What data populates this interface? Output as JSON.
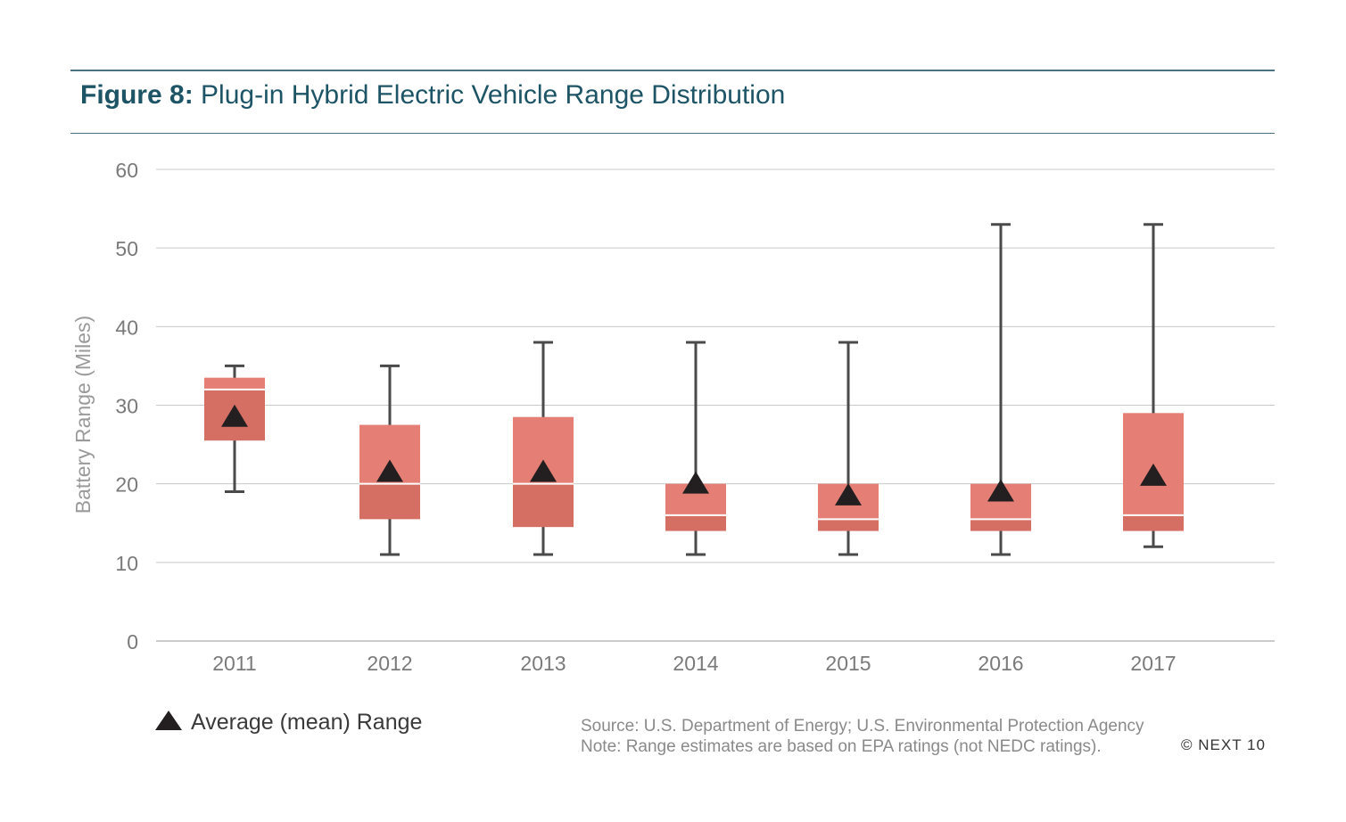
{
  "figure": {
    "label": "Figure 8:",
    "title": "Plug-in Hybrid Electric Vehicle Range Distribution"
  },
  "legend": {
    "label": "Average (mean) Range",
    "icon": "triangle-marker-icon"
  },
  "source": "Source: U.S. Department of Energy; U.S. Environmental Protection Agency",
  "note": "Note: Range estimates are based on EPA ratings (not NEDC ratings).",
  "copyright": "© NEXT 10",
  "colors": {
    "accent": "#1d5466",
    "rule": "#4b7282",
    "box_upper": "#e57f75",
    "box_lower": "#d56f64",
    "whisker": "#4a4a4a",
    "mean_marker": "#231f20",
    "grid": "#c8c8c8",
    "tick_text": "#7a7a7a"
  },
  "chart_data": {
    "type": "boxplot",
    "ylabel": "Battery Range (Miles)",
    "xlabel": "",
    "ylim": [
      0,
      60
    ],
    "yticks": [
      0,
      10,
      20,
      30,
      40,
      50,
      60
    ],
    "grid": true,
    "legend_position": "bottom-left",
    "categories": [
      "2011",
      "2012",
      "2013",
      "2014",
      "2015",
      "2016",
      "2017"
    ],
    "boxes": [
      {
        "year": "2011",
        "min": 19,
        "q1": 25.5,
        "median": 32,
        "q3": 33.5,
        "max": 35,
        "mean": 28.5
      },
      {
        "year": "2012",
        "min": 11,
        "q1": 15.5,
        "median": 20,
        "q3": 27.5,
        "max": 35,
        "mean": 21.5
      },
      {
        "year": "2013",
        "min": 11,
        "q1": 14.5,
        "median": 20,
        "q3": 28.5,
        "max": 38,
        "mean": 21.5
      },
      {
        "year": "2014",
        "min": 11,
        "q1": 14,
        "median": 16,
        "q3": 20,
        "max": 38,
        "mean": 20
      },
      {
        "year": "2015",
        "min": 11,
        "q1": 14,
        "median": 15.5,
        "q3": 20,
        "max": 38,
        "mean": 18.5
      },
      {
        "year": "2016",
        "min": 11,
        "q1": 14,
        "median": 15.5,
        "q3": 20,
        "max": 53,
        "mean": 19
      },
      {
        "year": "2017",
        "min": 12,
        "q1": 14,
        "median": 16,
        "q3": 29,
        "max": 53,
        "mean": 21
      }
    ]
  }
}
